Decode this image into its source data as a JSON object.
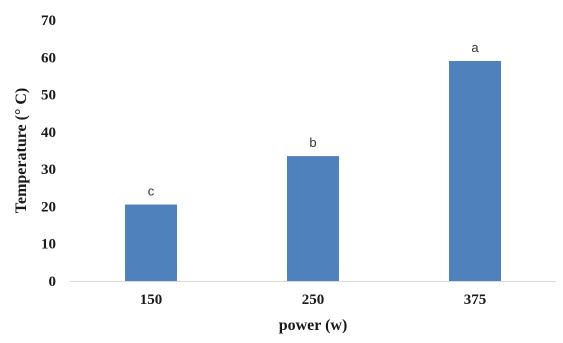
{
  "chart_data": {
    "type": "bar",
    "categories": [
      "150",
      "250",
      "375"
    ],
    "values": [
      20.5,
      33.5,
      59
    ],
    "data_labels": [
      "c",
      "b",
      "a"
    ],
    "xlabel": "power (w)",
    "ylabel": "Temperature (° C)",
    "ylim": [
      0,
      70
    ],
    "yticks": [
      0,
      10,
      20,
      30,
      40,
      50,
      60,
      70
    ],
    "grid": false,
    "legend": "none",
    "bar_color": "#4f81bd",
    "axis_color": "#d9d9d9"
  }
}
